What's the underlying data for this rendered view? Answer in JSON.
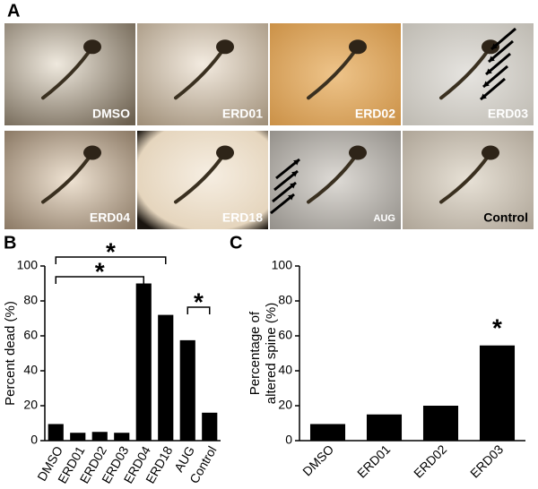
{
  "figure": {
    "panel_labels": [
      "A",
      "B",
      "C"
    ],
    "photos": [
      "DMSO",
      "ERD01",
      "ERD02",
      "ERD03",
      "ERD04",
      "ERD18",
      "AUG",
      "Control"
    ]
  },
  "chart_data": [
    {
      "type": "bar",
      "ylabel": [
        "Percent dead (%)"
      ],
      "categories": [
        "DMSO",
        "ERD01",
        "ERD02",
        "ERD03",
        "ERD04",
        "ERD18",
        "AUG",
        "Control"
      ],
      "values": [
        9.5,
        4.5,
        5,
        4.5,
        90,
        72,
        57.5,
        16
      ],
      "color": "#000000",
      "ylim": [
        0,
        100
      ],
      "yticks": [
        0,
        20,
        40,
        60,
        80,
        100
      ],
      "annotations": [
        {
          "text": "*",
          "between": [
            0,
            5
          ]
        },
        {
          "text": "*",
          "between": [
            0,
            4
          ]
        },
        {
          "text": "*",
          "between": [
            6,
            7
          ]
        }
      ]
    },
    {
      "type": "bar",
      "ylabel": [
        "Percentage of",
        "altered spine (%)"
      ],
      "categories": [
        "DMSO",
        "ERD01",
        "ERD02",
        "ERD03"
      ],
      "values": [
        9.5,
        15,
        20,
        54.5
      ],
      "color": "#000000",
      "ylim": [
        0,
        100
      ],
      "yticks": [
        0,
        20,
        40,
        60,
        80,
        100
      ],
      "annotations": [
        {
          "text": "*",
          "between": [
            3,
            3
          ]
        }
      ]
    }
  ]
}
